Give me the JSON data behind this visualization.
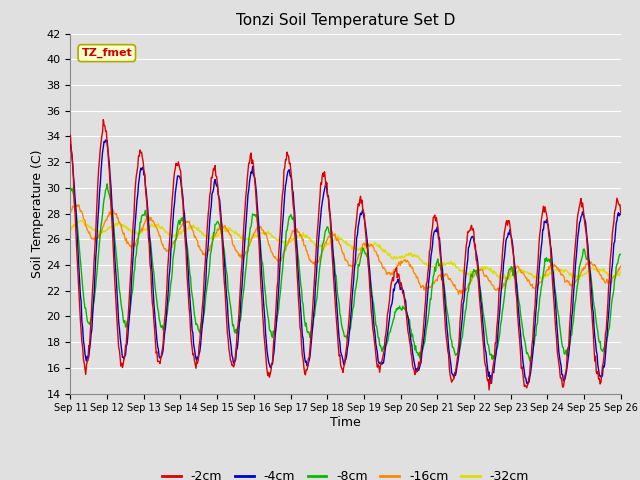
{
  "title": "Tonzi Soil Temperature Set D",
  "xlabel": "Time",
  "ylabel": "Soil Temperature (C)",
  "ylim": [
    14,
    42
  ],
  "yticks": [
    14,
    16,
    18,
    20,
    22,
    24,
    26,
    28,
    30,
    32,
    34,
    36,
    38,
    40,
    42
  ],
  "x_labels": [
    "Sep 11",
    "Sep 12",
    "Sep 13",
    "Sep 14",
    "Sep 15",
    "Sep 16",
    "Sep 17",
    "Sep 18",
    "Sep 19",
    "Sep 20",
    "Sep 21",
    "Sep 22",
    "Sep 23",
    "Sep 24",
    "Sep 25",
    "Sep 26"
  ],
  "legend_label": "TZ_fmet",
  "series_labels": [
    "-2cm",
    "-4cm",
    "-8cm",
    "-16cm",
    "-32cm"
  ],
  "series_colors": [
    "#dd0000",
    "#0000cc",
    "#00bb00",
    "#ff8800",
    "#dddd00"
  ],
  "background_color": "#e0e0e0",
  "plot_bg_color": "#e0e0e0",
  "grid_color": "#ffffff",
  "figsize": [
    6.4,
    4.8
  ],
  "dpi": 100
}
